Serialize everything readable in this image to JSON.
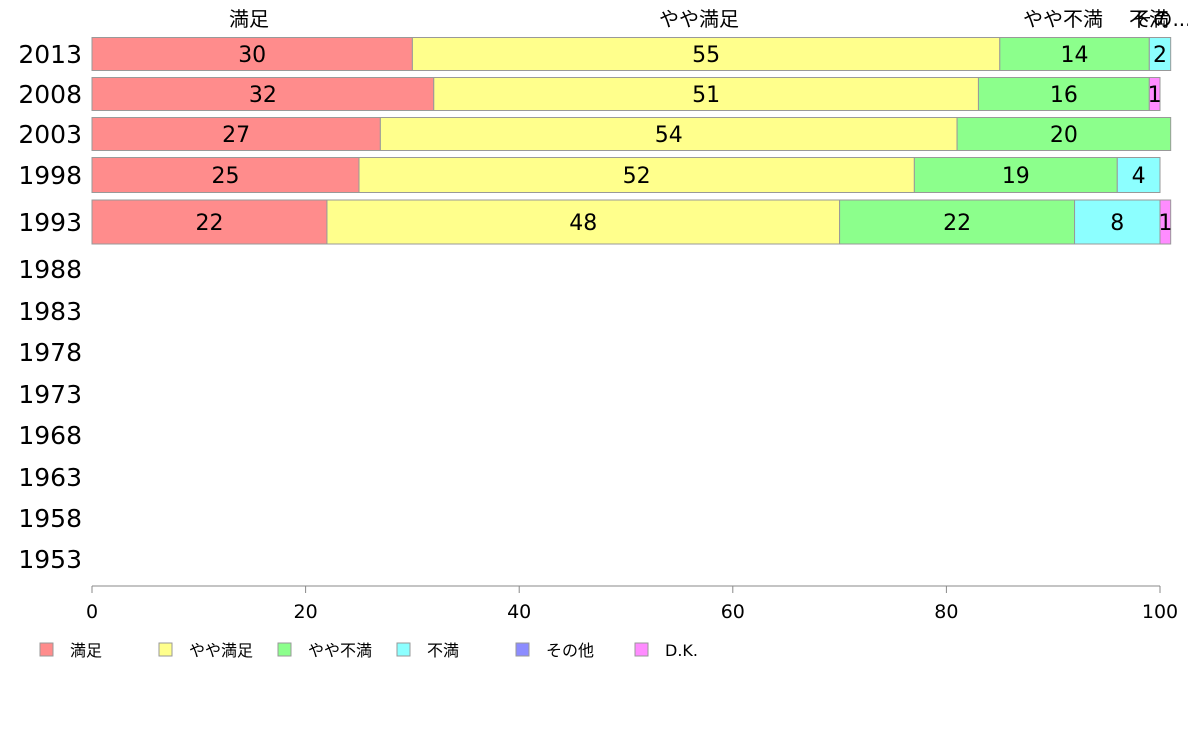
{
  "chart_data": {
    "type": "bar",
    "orientation": "horizontal",
    "stacked": true,
    "categories": [
      "2013",
      "2008",
      "2003",
      "1998",
      "1993",
      "1988",
      "1983",
      "1978",
      "1973",
      "1968",
      "1963",
      "1958",
      "1953"
    ],
    "series": [
      {
        "name": "満足",
        "color": "#ff8c8c",
        "values": [
          30,
          32,
          27,
          25,
          22,
          null,
          null,
          null,
          null,
          null,
          null,
          null,
          null
        ]
      },
      {
        "name": "やや満足",
        "color": "#ffff8c",
        "values": [
          55,
          51,
          54,
          52,
          48,
          null,
          null,
          null,
          null,
          null,
          null,
          null,
          null
        ]
      },
      {
        "name": "やや不満",
        "color": "#8cff8c",
        "values": [
          14,
          16,
          20,
          19,
          22,
          null,
          null,
          null,
          null,
          null,
          null,
          null,
          null
        ]
      },
      {
        "name": "不満",
        "color": "#8cffff",
        "values": [
          2,
          0,
          0,
          4,
          8,
          null,
          null,
          null,
          null,
          null,
          null,
          null,
          null
        ]
      },
      {
        "name": "その他",
        "color": "#8c8cff",
        "values": [
          0,
          0,
          0,
          0,
          0,
          null,
          null,
          null,
          null,
          null,
          null,
          null,
          null
        ]
      },
      {
        "name": "D.K.",
        "color": "#ff8cff",
        "values": [
          0,
          1,
          0,
          0,
          1,
          null,
          null,
          null,
          null,
          null,
          null,
          null,
          null
        ]
      }
    ],
    "top_labels": [
      "満足",
      "やや満足",
      "やや不満",
      "不満",
      "その..."
    ],
    "xticks": [
      0,
      20,
      40,
      60,
      80,
      100
    ],
    "xlim": [
      0,
      100
    ],
    "legend_position": "bottom",
    "grid": false
  }
}
